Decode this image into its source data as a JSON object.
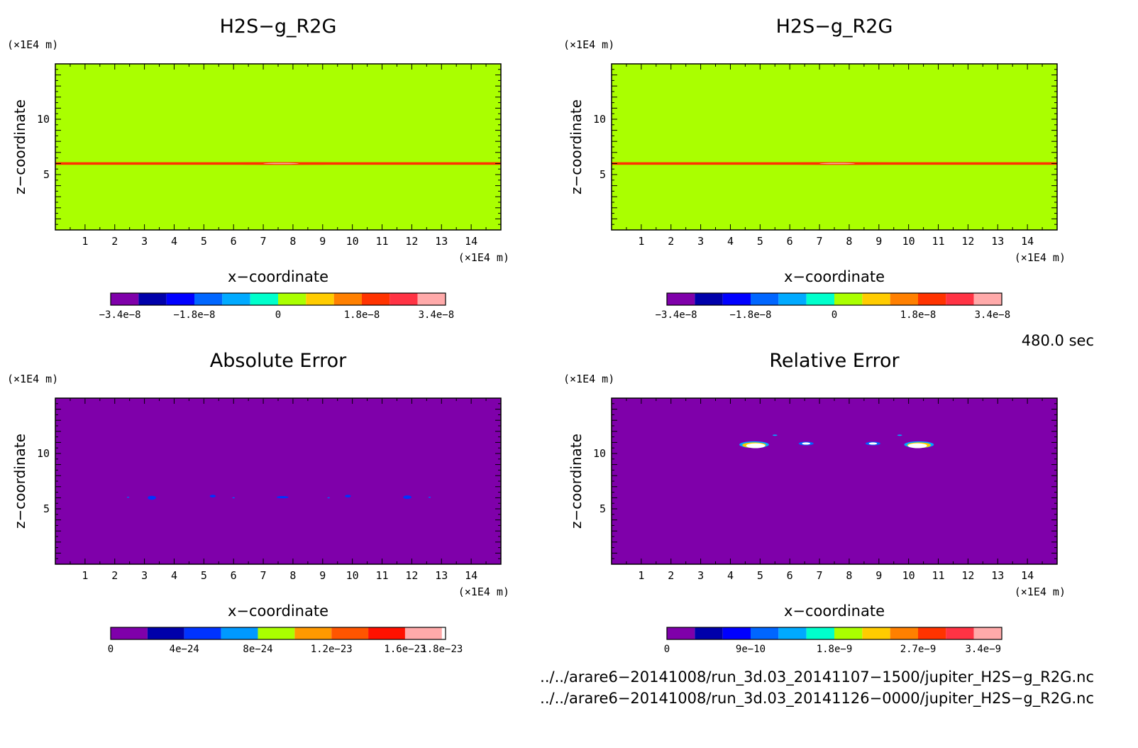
{
  "chart_data": [
    {
      "type": "heatmap",
      "title": "H2S−g_R2G",
      "xlabel": "x−coordinate",
      "ylabel": "z−coordinate",
      "x_unit": "(×1E4 m)",
      "y_unit": "(×1E4 m)",
      "xlim": [
        0,
        15
      ],
      "ylim": [
        0,
        15
      ],
      "x_ticks": [
        "1",
        "2",
        "3",
        "4",
        "5",
        "6",
        "7",
        "8",
        "9",
        "10",
        "11",
        "12",
        "13",
        "14"
      ],
      "y_ticks": [
        "5",
        "10"
      ],
      "background_color": "#aaff00",
      "colorbar": {
        "labels": [
          "−3.4e−8",
          "−1.8e−8",
          "0",
          "1.8e−8",
          "3.4e−8"
        ],
        "label_values": [
          -3.4e-08,
          -1.8e-08,
          0,
          1.8e-08,
          3.4e-08
        ],
        "range": [
          -3.6e-08,
          3.6e-08
        ],
        "colors": [
          "#7f00aa",
          "#0000aa",
          "#0000ff",
          "#0066ff",
          "#00aaff",
          "#00ffcc",
          "#aaff00",
          "#ffcc00",
          "#ff8000",
          "#ff3300",
          "#ff3344",
          "#ffaaaa"
        ]
      },
      "features": [
        {
          "kind": "band",
          "z": 6.0,
          "x_from": 0,
          "x_to": 15,
          "color": "#ff3300"
        },
        {
          "kind": "blob",
          "x": 7.7,
          "z": 6.0,
          "rx": 2.6,
          "rz": 0.12,
          "color": "#ff3300"
        },
        {
          "kind": "blob",
          "x": 7.6,
          "z": 6.0,
          "rx": 0.6,
          "rz": 0.05,
          "color": "#ffaaaa"
        }
      ]
    },
    {
      "type": "heatmap",
      "title": "H2S−g_R2G",
      "xlabel": "x−coordinate",
      "ylabel": "z−coordinate",
      "x_unit": "(×1E4 m)",
      "y_unit": "(×1E4 m)",
      "xlim": [
        0,
        15
      ],
      "ylim": [
        0,
        15
      ],
      "x_ticks": [
        "1",
        "2",
        "3",
        "4",
        "5",
        "6",
        "7",
        "8",
        "9",
        "10",
        "11",
        "12",
        "13",
        "14"
      ],
      "y_ticks": [
        "5",
        "10"
      ],
      "background_color": "#aaff00",
      "colorbar": {
        "labels": [
          "−3.4e−8",
          "−1.8e−8",
          "0",
          "1.8e−8",
          "3.4e−8"
        ],
        "label_values": [
          -3.4e-08,
          -1.8e-08,
          0,
          1.8e-08,
          3.4e-08
        ],
        "range": [
          -3.6e-08,
          3.6e-08
        ],
        "colors": [
          "#7f00aa",
          "#0000aa",
          "#0000ff",
          "#0066ff",
          "#00aaff",
          "#00ffcc",
          "#aaff00",
          "#ffcc00",
          "#ff8000",
          "#ff3300",
          "#ff3344",
          "#ffaaaa"
        ]
      },
      "features": [
        {
          "kind": "band",
          "z": 6.0,
          "x_from": 0,
          "x_to": 15,
          "color": "#ff3300"
        },
        {
          "kind": "blob",
          "x": 7.7,
          "z": 6.0,
          "rx": 2.6,
          "rz": 0.12,
          "color": "#ff3300"
        },
        {
          "kind": "blob",
          "x": 7.6,
          "z": 6.0,
          "rx": 0.6,
          "rz": 0.05,
          "color": "#ffaaaa"
        }
      ]
    },
    {
      "type": "heatmap",
      "title": "Absolute Error",
      "xlabel": "x−coordinate",
      "ylabel": "z−coordinate",
      "x_unit": "(×1E4 m)",
      "y_unit": "(×1E4 m)",
      "xlim": [
        0,
        15
      ],
      "ylim": [
        0,
        15
      ],
      "x_ticks": [
        "1",
        "2",
        "3",
        "4",
        "5",
        "6",
        "7",
        "8",
        "9",
        "10",
        "11",
        "12",
        "13",
        "14"
      ],
      "y_ticks": [
        "5",
        "10"
      ],
      "background_color": "#7f00aa",
      "colorbar": {
        "labels": [
          "0",
          "4e−24",
          "8e−24",
          "1.2e−23",
          "1.6e−23",
          "1.8e−23"
        ],
        "label_values": [
          0,
          4e-24,
          8e-24,
          1.2e-23,
          1.6e-23,
          1.8e-23
        ],
        "range": [
          0,
          1.82e-23
        ],
        "colors": [
          "#7f00aa",
          "#0000aa",
          "#0033ff",
          "#0099ff",
          "#aaff00",
          "#ff9900",
          "#ff5500",
          "#ff1100",
          "#ffaaaa"
        ],
        "color_bounds": [
          0,
          2e-24,
          4e-24,
          6e-24,
          8e-24,
          1e-23,
          1.2e-23,
          1.4e-23,
          1.6e-23,
          1.8e-23,
          1.82e-23
        ]
      },
      "features": [
        {
          "kind": "blob",
          "x": 3.25,
          "z": 6.0,
          "rx": 0.14,
          "rz": 0.18,
          "color": "#0033ff"
        },
        {
          "kind": "blob",
          "x": 5.3,
          "z": 6.15,
          "rx": 0.1,
          "rz": 0.12,
          "color": "#0033ff"
        },
        {
          "kind": "blob",
          "x": 7.65,
          "z": 6.05,
          "rx": 0.2,
          "rz": 0.1,
          "color": "#0033ff"
        },
        {
          "kind": "blob",
          "x": 9.85,
          "z": 6.15,
          "rx": 0.1,
          "rz": 0.12,
          "color": "#0033ff"
        },
        {
          "kind": "blob",
          "x": 11.85,
          "z": 6.05,
          "rx": 0.14,
          "rz": 0.16,
          "color": "#0033ff"
        },
        {
          "kind": "blob",
          "x": 2.45,
          "z": 6.05,
          "rx": 0.04,
          "rz": 0.05,
          "color": "#0066ff"
        },
        {
          "kind": "blob",
          "x": 6.0,
          "z": 6.0,
          "rx": 0.04,
          "rz": 0.05,
          "color": "#0066ff"
        },
        {
          "kind": "blob",
          "x": 9.2,
          "z": 6.0,
          "rx": 0.04,
          "rz": 0.05,
          "color": "#0066ff"
        },
        {
          "kind": "blob",
          "x": 12.6,
          "z": 6.05,
          "rx": 0.04,
          "rz": 0.05,
          "color": "#0066ff"
        }
      ]
    },
    {
      "type": "heatmap",
      "title": "Relative Error",
      "xlabel": "x−coordinate",
      "ylabel": "z−coordinate",
      "x_unit": "(×1E4 m)",
      "y_unit": "(×1E4 m)",
      "xlim": [
        0,
        15
      ],
      "ylim": [
        0,
        15
      ],
      "x_ticks": [
        "1",
        "2",
        "3",
        "4",
        "5",
        "6",
        "7",
        "8",
        "9",
        "10",
        "11",
        "12",
        "13",
        "14"
      ],
      "y_ticks": [
        "5",
        "10"
      ],
      "background_color": "#7f00aa",
      "colorbar": {
        "labels": [
          "0",
          "9e−10",
          "1.8e−9",
          "2.7e−9",
          "3.4e−9"
        ],
        "label_values": [
          0,
          9e-10,
          1.8e-09,
          2.7e-09,
          3.4e-09
        ],
        "range": [
          0,
          3.6e-09
        ],
        "colors": [
          "#7f00aa",
          "#0000aa",
          "#0000ff",
          "#0066ff",
          "#00aaff",
          "#00ffcc",
          "#aaff00",
          "#ffcc00",
          "#ff8000",
          "#ff3300",
          "#ff3344",
          "#ffaaaa"
        ]
      },
      "features": [
        {
          "kind": "blob",
          "x": 4.8,
          "z": 10.8,
          "rx": 0.5,
          "rz": 0.3,
          "color": "#00aaff"
        },
        {
          "kind": "blob",
          "x": 4.8,
          "z": 10.75,
          "rx": 0.4,
          "rz": 0.25,
          "color": "#ffcc00"
        },
        {
          "kind": "blob",
          "x": 4.85,
          "z": 10.7,
          "rx": 0.32,
          "rz": 0.22,
          "color": "#ffffff"
        },
        {
          "kind": "blob",
          "x": 6.55,
          "z": 10.9,
          "rx": 0.25,
          "rz": 0.16,
          "color": "#0066ff"
        },
        {
          "kind": "blob",
          "x": 6.55,
          "z": 10.9,
          "rx": 0.14,
          "rz": 0.1,
          "color": "#ffffff"
        },
        {
          "kind": "blob",
          "x": 5.5,
          "z": 11.65,
          "rx": 0.08,
          "rz": 0.06,
          "color": "#00aaff"
        },
        {
          "kind": "blob",
          "x": 8.8,
          "z": 10.9,
          "rx": 0.25,
          "rz": 0.16,
          "color": "#0066ff"
        },
        {
          "kind": "blob",
          "x": 8.8,
          "z": 10.9,
          "rx": 0.14,
          "rz": 0.1,
          "color": "#ffffff"
        },
        {
          "kind": "blob",
          "x": 9.7,
          "z": 11.65,
          "rx": 0.08,
          "rz": 0.06,
          "color": "#00aaff"
        },
        {
          "kind": "blob",
          "x": 10.35,
          "z": 10.8,
          "rx": 0.5,
          "rz": 0.3,
          "color": "#00aaff"
        },
        {
          "kind": "blob",
          "x": 10.35,
          "z": 10.75,
          "rx": 0.4,
          "rz": 0.25,
          "color": "#ffcc00"
        },
        {
          "kind": "blob",
          "x": 10.3,
          "z": 10.7,
          "rx": 0.32,
          "rz": 0.22,
          "color": "#ffffff"
        }
      ]
    }
  ],
  "time_label": "480.0 sec",
  "files": [
    "../../arare6−20141008/run_3d.03_20141107−1500/jupiter_H2S−g_R2G.nc",
    "../../arare6−20141008/run_3d.03_20141126−0000/jupiter_H2S−g_R2G.nc"
  ]
}
